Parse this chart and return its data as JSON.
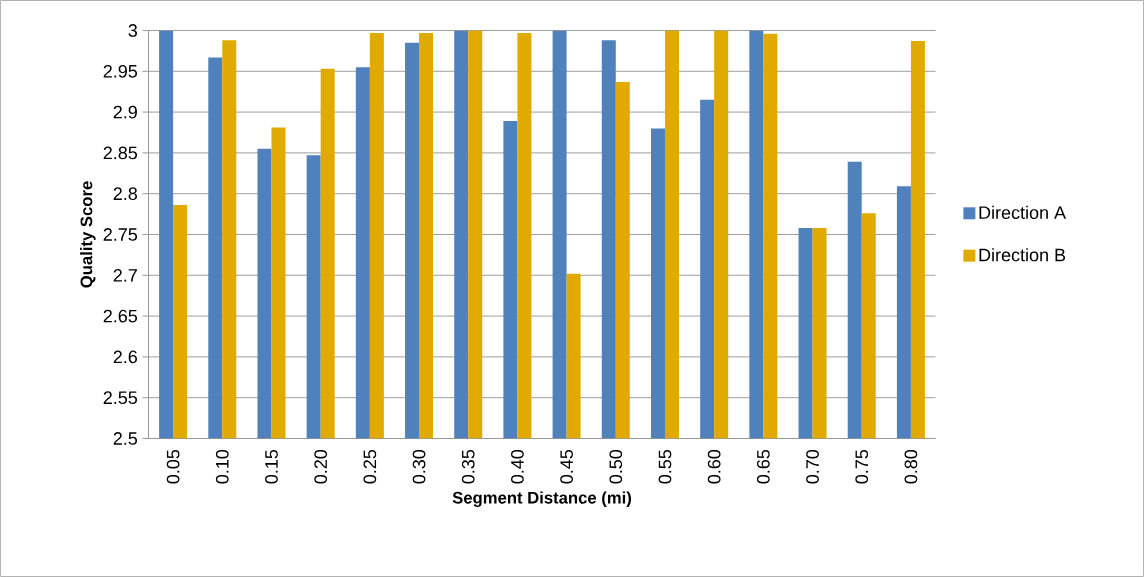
{
  "chart_data": {
    "type": "bar",
    "xlabel": "Segment Distance (mi)",
    "ylabel": "Quality Score",
    "categories": [
      "0.05",
      "0.10",
      "0.15",
      "0.20",
      "0.25",
      "0.30",
      "0.35",
      "0.40",
      "0.45",
      "0.50",
      "0.55",
      "0.60",
      "0.65",
      "0.70",
      "0.75",
      "0.80"
    ],
    "series": [
      {
        "name": "Direction A",
        "color": "#4f81bd",
        "values": [
          3.0,
          2.967,
          2.855,
          2.847,
          2.955,
          2.985,
          3.0,
          2.889,
          3.0,
          2.988,
          2.88,
          2.915,
          3.0,
          2.758,
          2.839,
          2.809
        ]
      },
      {
        "name": "Direction B",
        "color": "#e0aa00",
        "values": [
          2.786,
          2.988,
          2.881,
          2.953,
          2.997,
          2.997,
          3.0,
          2.997,
          2.702,
          2.937,
          3.0,
          3.0,
          2.996,
          2.758,
          2.776,
          2.987
        ]
      }
    ],
    "ylim": [
      2.5,
      3
    ],
    "yticks": [
      2.5,
      2.55,
      2.6,
      2.65,
      2.7,
      2.75,
      2.8,
      2.85,
      2.9,
      2.95,
      3
    ],
    "grid": "y",
    "legend": "right"
  }
}
